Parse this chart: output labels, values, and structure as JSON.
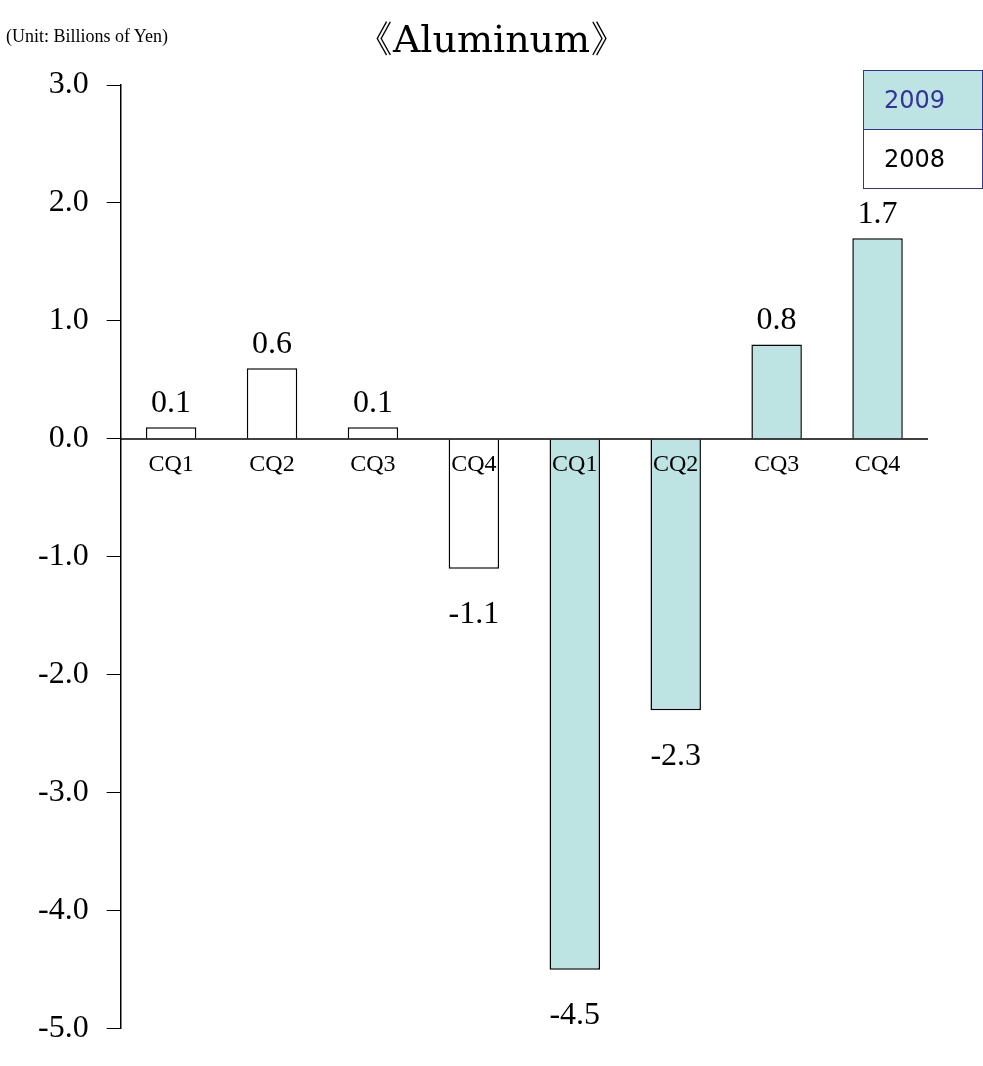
{
  "chart_data": {
    "type": "bar",
    "title": "《Aluminum》",
    "annotations": [
      "(Unit: Billions of Yen)"
    ],
    "categories": [
      "CQ1",
      "CQ2",
      "CQ3",
      "CQ4",
      "CQ1",
      "CQ2",
      "CQ3",
      "CQ4"
    ],
    "series": [
      {
        "name": "2009",
        "color": "#bde3e3",
        "values": [
          null,
          null,
          null,
          null,
          -4.5,
          -2.3,
          0.8,
          1.7
        ]
      },
      {
        "name": "2008",
        "color": "#ffffff",
        "values": [
          0.1,
          0.6,
          0.1,
          -1.1,
          null,
          null,
          null,
          null
        ]
      }
    ],
    "ylim": [
      -5,
      3
    ],
    "yticks": [
      {
        "value": 3,
        "label": "3.0"
      },
      {
        "value": 2,
        "label": "2.0"
      },
      {
        "value": 1,
        "label": "1.0"
      },
      {
        "value": 0,
        "label": "0.0"
      },
      {
        "value": -1,
        "label": "-1.0"
      },
      {
        "value": -2,
        "label": "-2.0"
      },
      {
        "value": -3,
        "label": "-3.0"
      },
      {
        "value": -4,
        "label": "-4.0"
      },
      {
        "value": -5,
        "label": "-5.0"
      }
    ],
    "grid": false,
    "legend": "top right",
    "data_labels": true
  }
}
